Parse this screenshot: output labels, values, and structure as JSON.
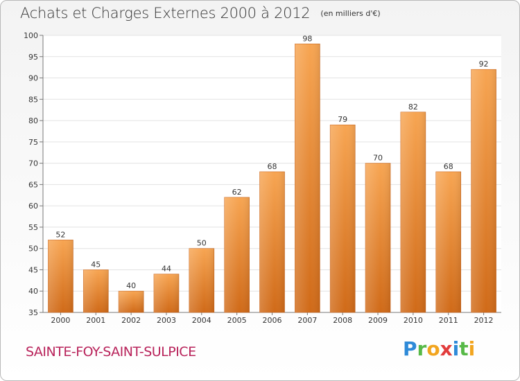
{
  "header": {
    "title": "Achats et Charges Externes 2000 à 2012",
    "subtitle": "(en milliers d'€)"
  },
  "commune": "SAINTE-FOY-SAINT-SULPICE",
  "logo": {
    "text": "Proxiti",
    "letters": [
      {
        "ch": "P",
        "color": "#2e8ad8"
      },
      {
        "ch": "r",
        "color": "#57b947"
      },
      {
        "ch": "o",
        "color": "#f2a51f"
      },
      {
        "ch": "x",
        "color": "#e23c3c"
      },
      {
        "ch": "i",
        "color": "#2e8ad8"
      },
      {
        "ch": "t",
        "color": "#57b947"
      },
      {
        "ch": "i",
        "color": "#f2a51f"
      }
    ]
  },
  "chart_data": {
    "type": "bar",
    "categories": [
      "2000",
      "2001",
      "2002",
      "2003",
      "2004",
      "2005",
      "2006",
      "2007",
      "2008",
      "2009",
      "2010",
      "2011",
      "2012"
    ],
    "values": [
      52,
      45,
      40,
      44,
      50,
      62,
      68,
      98,
      79,
      70,
      82,
      68,
      92
    ],
    "ylim": [
      35,
      100
    ],
    "yticks": [
      35,
      40,
      45,
      50,
      55,
      60,
      65,
      70,
      75,
      80,
      85,
      90,
      95,
      100
    ],
    "grid": true,
    "bar_color": "#e8893a",
    "xlabel": "",
    "ylabel": ""
  }
}
